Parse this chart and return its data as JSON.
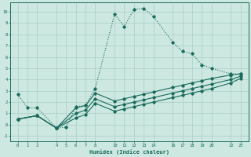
{
  "xlabel": "Humidex (Indice chaleur)",
  "bg_color": "#cce8e0",
  "grid_color": "#aacfc8",
  "line_color": "#1a6b5e",
  "xlim": [
    -0.8,
    23.8
  ],
  "ylim": [
    -1.5,
    10.8
  ],
  "xticks": [
    0,
    1,
    2,
    4,
    5,
    6,
    7,
    8,
    10,
    11,
    12,
    13,
    14,
    16,
    17,
    18,
    19,
    20,
    22,
    23
  ],
  "yticks": [
    -1,
    0,
    1,
    2,
    3,
    4,
    5,
    6,
    7,
    8,
    9,
    10
  ],
  "line1_x": [
    0,
    1,
    2,
    4,
    5,
    6,
    7,
    8,
    10,
    11,
    12,
    13,
    14,
    16,
    17,
    18,
    19,
    20,
    22,
    23
  ],
  "line1_y": [
    2.7,
    1.5,
    1.5,
    -0.3,
    -0.2,
    1.6,
    1.7,
    3.2,
    9.8,
    8.7,
    10.2,
    10.3,
    9.6,
    7.3,
    6.5,
    6.3,
    5.3,
    5.0,
    4.5,
    4.5
  ],
  "line2_x": [
    0,
    2,
    4,
    6,
    7,
    8,
    10,
    11,
    12,
    13,
    14,
    16,
    17,
    18,
    19,
    20,
    22,
    23
  ],
  "line2_y": [
    0.5,
    0.8,
    -0.3,
    1.5,
    1.7,
    2.8,
    2.1,
    2.3,
    2.5,
    2.7,
    2.9,
    3.3,
    3.5,
    3.7,
    3.9,
    4.1,
    4.4,
    4.5
  ],
  "line3_x": [
    0,
    2,
    4,
    6,
    7,
    8,
    10,
    11,
    12,
    13,
    14,
    16,
    17,
    18,
    19,
    20,
    22,
    23
  ],
  "line3_y": [
    0.5,
    0.8,
    -0.3,
    1.0,
    1.3,
    2.3,
    1.6,
    1.8,
    2.0,
    2.2,
    2.4,
    2.8,
    3.0,
    3.2,
    3.4,
    3.6,
    4.0,
    4.3
  ],
  "line4_x": [
    0,
    2,
    4,
    6,
    7,
    8,
    10,
    11,
    12,
    13,
    14,
    16,
    17,
    18,
    19,
    20,
    22,
    23
  ],
  "line4_y": [
    0.5,
    0.8,
    -0.3,
    0.6,
    0.9,
    1.9,
    1.2,
    1.4,
    1.6,
    1.8,
    2.0,
    2.4,
    2.6,
    2.8,
    3.0,
    3.2,
    3.7,
    4.1
  ]
}
